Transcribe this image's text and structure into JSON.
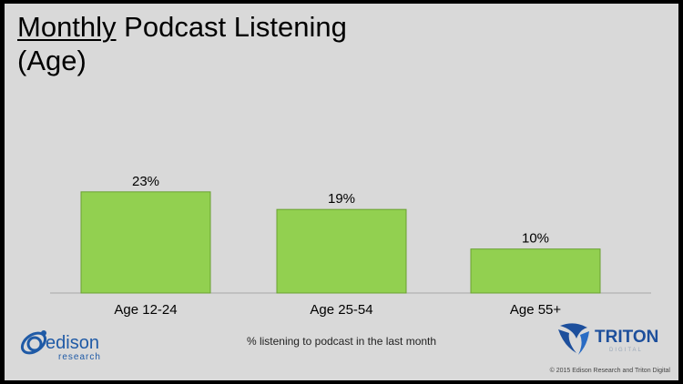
{
  "title": {
    "underlined": "Monthly",
    "rest": " Podcast Listening",
    "line2": "(Age)"
  },
  "chart_data": {
    "type": "bar",
    "categories": [
      "Age 12-24",
      "Age 25-54",
      "Age 55+"
    ],
    "values": [
      23,
      19,
      10
    ],
    "value_labels": [
      "23%",
      "19%",
      "10%"
    ],
    "unit": "%",
    "ylim": [
      0,
      30
    ],
    "grid": false,
    "bar_color": "#92d050",
    "bar_border": "#6aa132"
  },
  "footnote": "% listening to podcast in the last month",
  "copyright": "© 2015 Edison Research and Triton Digital",
  "logos": {
    "edison": {
      "name": "edison",
      "sub": "research",
      "icon": "edison-orbit-logo"
    },
    "triton": {
      "name": "TRITON",
      "sub": "DIGITAL",
      "icon": "triton-swirl-logo"
    }
  },
  "colors": {
    "background": "#d9d9d9",
    "frame": "#000000",
    "edison_blue": "#1f5aa6",
    "triton_blue": "#1d4f9c"
  }
}
